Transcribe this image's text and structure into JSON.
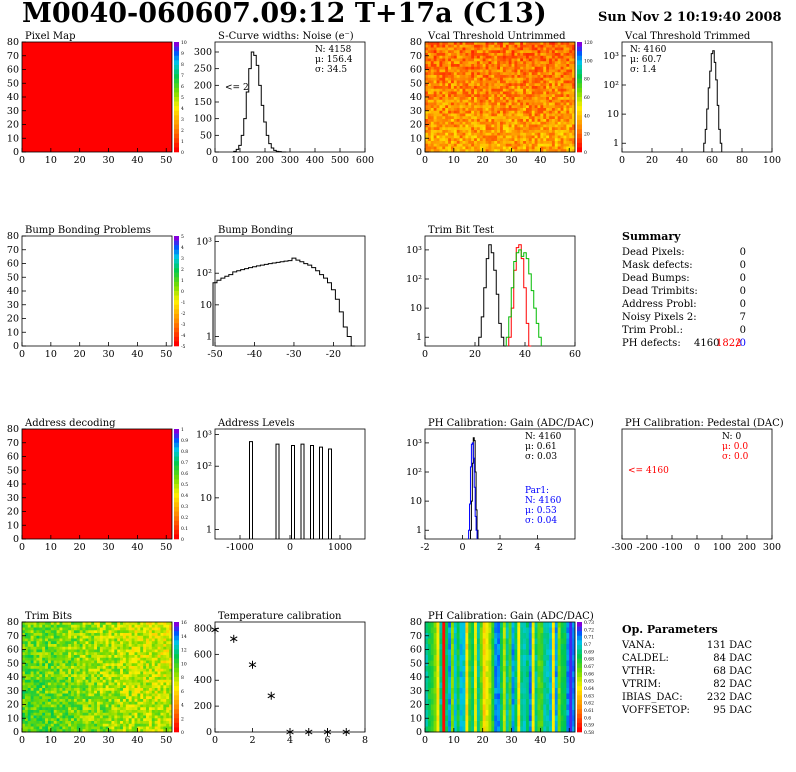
{
  "header": {
    "title": "M0040-060607.09:12 T+17a (C13)",
    "date": "Sun Nov  2 10:19:40 2008"
  },
  "colors": {
    "map_red": "#ff0000",
    "hist_line": "#000000",
    "red_line": "#ff0000",
    "green_line": "#00bb00",
    "blue_text": "#0000ff"
  },
  "chart_data": [
    {
      "id": "pixel_map",
      "type": "heatmap",
      "title": "Pixel Map",
      "fill": "uniform-red",
      "xticks": [
        "0",
        "10",
        "20",
        "30",
        "40",
        "50"
      ],
      "yticks": [
        "0",
        "10",
        "20",
        "30",
        "40",
        "50",
        "60",
        "70",
        "80"
      ],
      "scale_labels": [
        "0",
        "1",
        "2",
        "3",
        "4",
        "5",
        "6",
        "7",
        "8",
        "9",
        "10"
      ]
    },
    {
      "id": "scurve_widths",
      "type": "line",
      "title": "S-Curve widths: Noise (e⁻)",
      "xticks": [
        "0",
        "100",
        "200",
        "300",
        "400",
        "500",
        "600"
      ],
      "xlim": [
        0,
        600
      ],
      "yticks": [
        "0",
        "50",
        "100",
        "150",
        "200",
        "250",
        "300"
      ],
      "ylim": [
        0,
        330
      ],
      "stats": [
        "N: 4158",
        "μ: 156.4",
        "σ: 34.5"
      ],
      "annotation": "<= 2",
      "x": [
        80,
        90,
        100,
        110,
        120,
        130,
        140,
        150,
        160,
        170,
        180,
        190,
        200,
        210,
        220,
        230,
        240,
        250,
        260,
        270,
        280
      ],
      "y": [
        2,
        8,
        20,
        50,
        100,
        180,
        250,
        300,
        290,
        260,
        200,
        140,
        90,
        50,
        25,
        12,
        5,
        2,
        1,
        0,
        0
      ]
    },
    {
      "id": "vcal_untrimmed",
      "type": "heatmap",
      "title": "Vcal Threshold Untrimmed",
      "fill": "noisy-warm",
      "xticks": [
        "0",
        "10",
        "20",
        "30",
        "40",
        "50"
      ],
      "yticks": [
        "0",
        "10",
        "20",
        "30",
        "40",
        "50",
        "60",
        "70",
        "80"
      ],
      "scale_labels": [
        "0",
        "20",
        "40",
        "60",
        "80",
        "100",
        "120"
      ]
    },
    {
      "id": "vcal_trimmed",
      "type": "line",
      "title": "Vcal Threshold Trimmed",
      "log_y": true,
      "xticks": [
        "0",
        "20",
        "40",
        "60",
        "80",
        "100"
      ],
      "xlim": [
        0,
        100
      ],
      "yticks": [
        "1",
        "10",
        "10²",
        "10³"
      ],
      "ylim": [
        0.5,
        3000
      ],
      "stats": [
        "N: 4160",
        "μ: 60.7",
        "σ: 1.4"
      ],
      "x": [
        55,
        56,
        57,
        58,
        59,
        60,
        61,
        62,
        63,
        64,
        65,
        66
      ],
      "y": [
        1,
        3,
        15,
        80,
        300,
        1200,
        1500,
        600,
        150,
        20,
        3,
        1
      ]
    },
    {
      "id": "bump_problems",
      "type": "heatmap",
      "title": "Bump Bonding Problems",
      "fill": "empty",
      "xticks": [
        "0",
        "10",
        "20",
        "30",
        "40",
        "50"
      ],
      "yticks": [
        "0",
        "10",
        "20",
        "30",
        "40",
        "50",
        "60",
        "70",
        "80"
      ],
      "scale_labels": [
        "-5",
        "-4",
        "-3",
        "-2",
        "-1",
        "0",
        "1",
        "2",
        "3",
        "4",
        "5"
      ]
    },
    {
      "id": "bump_bonding",
      "type": "line",
      "title": "Bump Bonding",
      "log_y": true,
      "xticks": [
        "-50",
        "-40",
        "-30",
        "-20"
      ],
      "xlim": [
        -50,
        -12
      ],
      "yticks": [
        "1",
        "10",
        "10²",
        "10³"
      ],
      "ylim": [
        0.5,
        1500
      ],
      "x": [
        -50,
        -49,
        -48,
        -47,
        -46,
        -45,
        -44,
        -43,
        -42,
        -41,
        -40,
        -39,
        -38,
        -37,
        -36,
        -35,
        -34,
        -33,
        -32,
        -31,
        -30,
        -29,
        -28,
        -27,
        -26,
        -25,
        -24,
        -23,
        -22,
        -21,
        -20,
        -19,
        -18,
        -17,
        -16,
        -15
      ],
      "y": [
        50,
        60,
        70,
        80,
        90,
        110,
        120,
        130,
        140,
        150,
        160,
        170,
        180,
        190,
        200,
        210,
        220,
        230,
        240,
        250,
        300,
        260,
        230,
        200,
        180,
        150,
        120,
        90,
        70,
        50,
        30,
        15,
        6,
        2,
        1,
        0
      ]
    },
    {
      "id": "trim_bit_test",
      "type": "line",
      "title": "Trim Bit Test",
      "log_y": true,
      "xticks": [
        "0",
        "20",
        "40",
        "60"
      ],
      "xlim": [
        0,
        60
      ],
      "yticks": [
        "1",
        "10",
        "10²",
        "10³"
      ],
      "ylim": [
        0.5,
        3000
      ],
      "series": [
        {
          "color": "#000000",
          "x": [
            22,
            23,
            24,
            25,
            26,
            27,
            28,
            29,
            30,
            31,
            32
          ],
          "y": [
            1,
            5,
            50,
            500,
            1500,
            800,
            200,
            30,
            3,
            1,
            0
          ]
        },
        {
          "color": "#ff0000",
          "x": [
            34,
            35,
            36,
            37,
            38,
            39,
            40,
            41,
            42
          ],
          "y": [
            1,
            10,
            200,
            1200,
            1500,
            500,
            50,
            3,
            0
          ]
        },
        {
          "color": "#00bb00",
          "x": [
            33,
            34,
            35,
            36,
            37,
            38,
            39,
            40,
            41,
            42,
            43,
            44,
            45,
            46
          ],
          "y": [
            1,
            5,
            50,
            400,
            800,
            1000,
            600,
            800,
            500,
            150,
            40,
            10,
            3,
            1
          ]
        }
      ]
    },
    {
      "id": "address_decoding",
      "type": "heatmap",
      "title": "Address decoding",
      "fill": "uniform-red",
      "xticks": [
        "0",
        "10",
        "20",
        "30",
        "40",
        "50"
      ],
      "yticks": [
        "0",
        "10",
        "20",
        "30",
        "40",
        "50",
        "60",
        "70",
        "80"
      ],
      "scale_labels": [
        "0",
        "0.1",
        "0.2",
        "0.3",
        "0.4",
        "0.5",
        "0.6",
        "0.7",
        "0.8",
        "0.9",
        "1"
      ]
    },
    {
      "id": "address_levels",
      "type": "line",
      "title": "Address Levels",
      "log_y": true,
      "xticks": [
        "-1000",
        "0",
        "1000"
      ],
      "xlim": [
        -1500,
        1500
      ],
      "yticks": [
        "1",
        "10",
        "10²",
        "10³"
      ],
      "ylim": [
        0.5,
        1500
      ],
      "peaks": [
        -780,
        -250,
        60,
        250,
        440,
        620,
        800
      ],
      "peak_heights": [
        600,
        500,
        450,
        500,
        450,
        400,
        350
      ]
    },
    {
      "id": "ph_gain",
      "type": "line",
      "title": "PH Calibration: Gain (ADC/DAC)",
      "log_y": true,
      "xticks": [
        "-2",
        "0",
        "2",
        "4"
      ],
      "xlim": [
        -2,
        6
      ],
      "yticks": [
        "1",
        "10",
        "10²",
        "10³"
      ],
      "ylim": [
        0.5,
        3000
      ],
      "stats": [
        "N: 4160",
        "μ: 0.61",
        "σ: 0.03"
      ],
      "fit_stats": [
        "Par1:",
        "N: 4160",
        "μ: 0.53",
        "σ: 0.04"
      ],
      "series": [
        {
          "color": "#000000",
          "x": [
            0.45,
            0.5,
            0.55,
            0.6,
            0.65,
            0.7,
            0.75,
            0.8
          ],
          "y": [
            1,
            10,
            200,
            1500,
            1200,
            100,
            5,
            1
          ]
        },
        {
          "color": "#0000ff",
          "x": [
            0.35,
            0.4,
            0.45,
            0.5,
            0.55,
            0.6,
            0.65,
            0.7,
            0.75
          ],
          "y": [
            1,
            8,
            150,
            900,
            1000,
            300,
            30,
            3,
            1
          ]
        }
      ]
    },
    {
      "id": "ph_pedestal",
      "type": "line",
      "title": "PH Calibration: Pedestal (DAC)",
      "xticks": [
        "-300",
        "-200",
        "-100",
        "0",
        "100",
        "200",
        "300"
      ],
      "xlim": [
        -300,
        300
      ],
      "stats": [
        "N:    0",
        "μ:  0.0",
        "σ:  0.0"
      ],
      "annotation": "<= 4160"
    },
    {
      "id": "trim_bits",
      "type": "heatmap",
      "title": "Trim Bits",
      "fill": "noisy-cool",
      "xticks": [
        "0",
        "10",
        "20",
        "30",
        "40",
        "50"
      ],
      "yticks": [
        "0",
        "10",
        "20",
        "30",
        "40",
        "50",
        "60",
        "70",
        "80"
      ],
      "scale_labels": [
        "0",
        "2",
        "4",
        "6",
        "8",
        "10",
        "12",
        "14",
        "16"
      ]
    },
    {
      "id": "temperature_calibration",
      "type": "scatter",
      "title": "Temperature calibration",
      "xticks": [
        "0",
        "2",
        "4",
        "6",
        "8"
      ],
      "xlim": [
        0,
        8
      ],
      "yticks": [
        "0",
        "200",
        "400",
        "600",
        "800"
      ],
      "ylim": [
        0,
        850
      ],
      "x": [
        0,
        1,
        2,
        3,
        4,
        5,
        6,
        7
      ],
      "y": [
        790,
        720,
        520,
        280,
        0,
        0,
        0,
        0
      ]
    },
    {
      "id": "ph_gain_map",
      "type": "heatmap",
      "title": "PH Calibration: Gain (ADC/DAC)",
      "fill": "column-stripes",
      "xticks": [
        "0",
        "10",
        "20",
        "30",
        "40",
        "50"
      ],
      "yticks": [
        "0",
        "10",
        "20",
        "30",
        "40",
        "50",
        "60",
        "70",
        "80"
      ],
      "scale_labels": [
        "0.58",
        "0.59",
        "0.6",
        "0.61",
        "0.62",
        "0.63",
        "0.64",
        "0.65",
        "0.66",
        "0.67",
        "0.68",
        "0.69",
        "0.7",
        "0.71",
        "0.72",
        "0.73"
      ]
    }
  ],
  "summary": {
    "title": "Summary",
    "rows": [
      {
        "label": "Dead Pixels:",
        "value": "0"
      },
      {
        "label": "Mask defects:",
        "value": "0"
      },
      {
        "label": "Dead Bumps:",
        "value": "0"
      },
      {
        "label": "Dead Trimbits:",
        "value": "0"
      },
      {
        "label": "Address Probl:",
        "value": "0"
      },
      {
        "label": "Noisy Pixels 2:",
        "value": "7"
      },
      {
        "label": "Trim Probl.:",
        "value": "0"
      }
    ],
    "ph_defects": {
      "label": "PH defects:",
      "v1": "4160",
      "v2": "1822",
      "sep": "/",
      "v3": "0"
    }
  },
  "op_parameters": {
    "title": "Op. Parameters",
    "rows": [
      {
        "label": "VANA:",
        "value": "131 DAC"
      },
      {
        "label": "CALDEL:",
        "value": "84 DAC"
      },
      {
        "label": "VTHR:",
        "value": "68 DAC"
      },
      {
        "label": "VTRIM:",
        "value": "82 DAC"
      },
      {
        "label": "IBIAS_DAC:",
        "value": "232 DAC"
      },
      {
        "label": "VOFFSETOP:",
        "value": "95 DAC"
      }
    ]
  }
}
